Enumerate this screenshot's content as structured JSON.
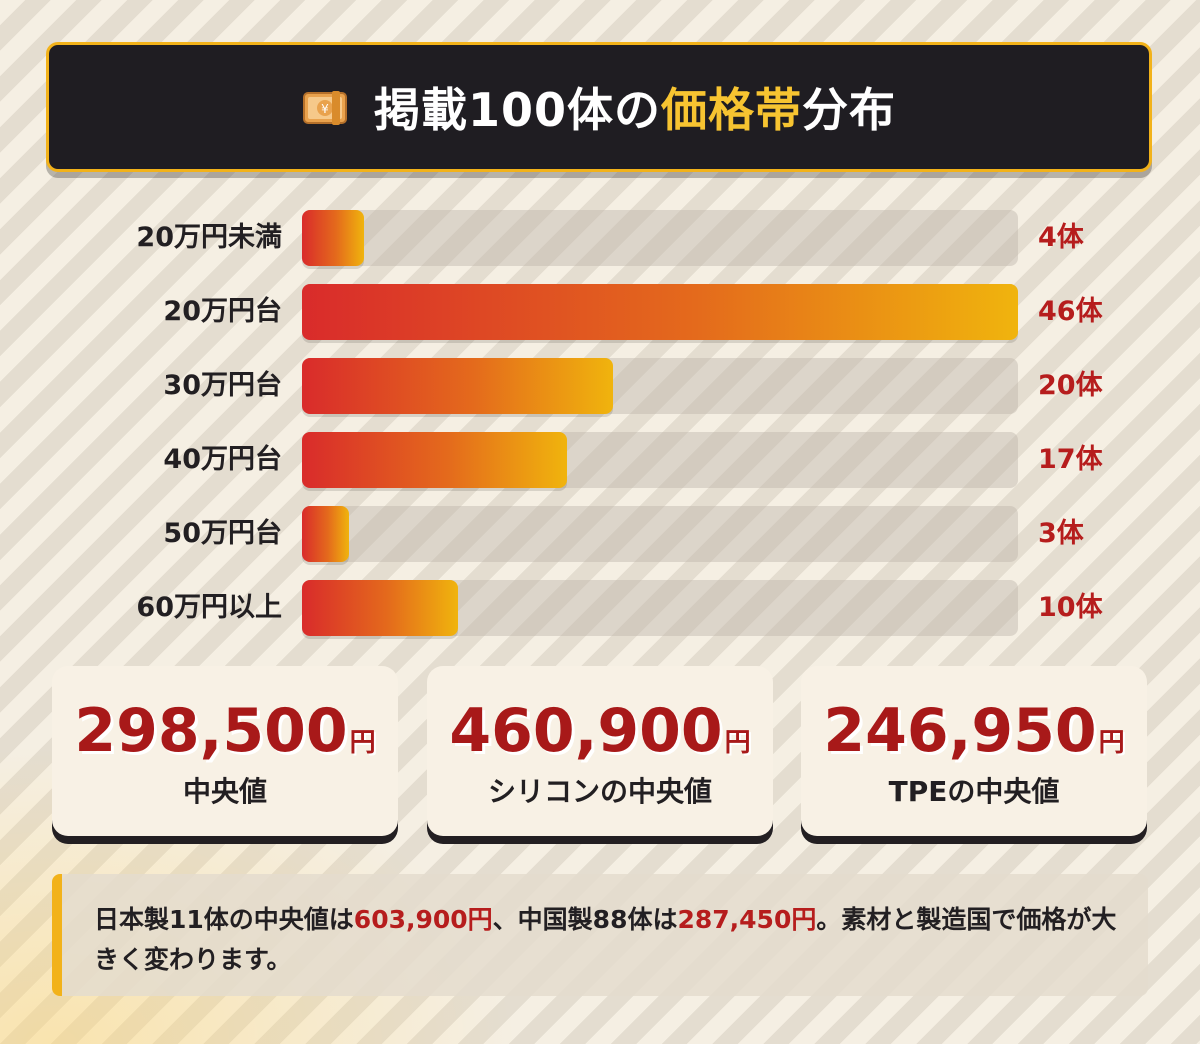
{
  "title": {
    "icon": "money-with-yen-icon",
    "part1": "掲載100体の",
    "highlight": "価格帯",
    "part2": "分布"
  },
  "colors": {
    "accent": "#f2b21a",
    "title_bg": "#1f1d22",
    "bar_start": "#d92b2b",
    "bar_end": "#f0b40d",
    "value_red": "#b61d1d"
  },
  "chart_data": {
    "type": "bar",
    "orientation": "horizontal",
    "title": "掲載100体の価格帯分布",
    "categories": [
      "20万円未満",
      "20万円台",
      "30万円台",
      "40万円台",
      "50万円台",
      "60万円以上"
    ],
    "values": [
      4,
      46,
      20,
      17,
      3,
      10
    ],
    "value_labels": [
      "4体",
      "46体",
      "20体",
      "17体",
      "3体",
      "10体"
    ],
    "xlim": [
      0,
      46
    ],
    "grid": false
  },
  "stats": [
    {
      "value": "298,500",
      "unit": "円",
      "label": "中央値"
    },
    {
      "value": "460,900",
      "unit": "円",
      "label": "シリコンの中央値"
    },
    {
      "value": "246,950",
      "unit": "円",
      "label": "TPEの中央値"
    }
  ],
  "note": {
    "t1": "日本製11体の中央値は",
    "v1": "603,900円",
    "t2": "、中国製88体は",
    "v2": "287,450円",
    "t3": "。素材と製造国で価格が大きく変わります。"
  }
}
